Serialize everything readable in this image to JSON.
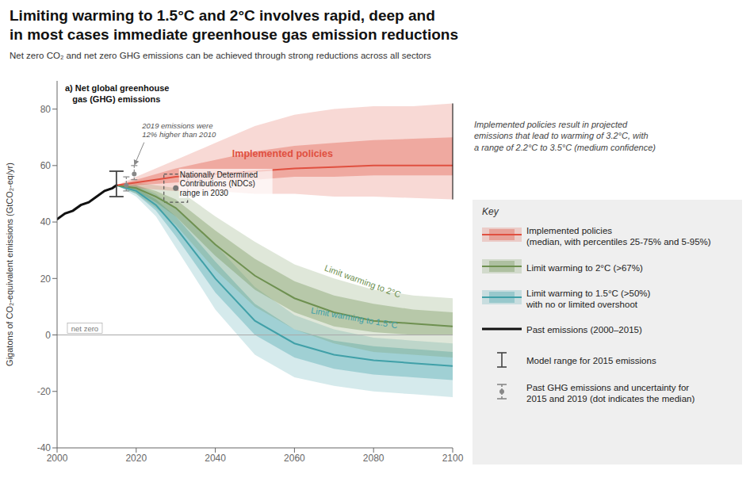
{
  "chart_data": {
    "type": "line",
    "title": "Limiting warming to 1.5°C and 2°C involves rapid, deep and\nin most cases immediate greenhouse gas emission reductions",
    "subtitle": "Net zero CO₂ and net zero GHG emissions can be achieved through strong reductions across all sectors",
    "panel_label": "a) Net global greenhouse\n   gas (GHG) emissions",
    "ylabel": "Gigatons of CO₂-equivalent emissions (GtCO₂-eq/yr)",
    "xlim": [
      2000,
      2100
    ],
    "ylim": [
      -40,
      90
    ],
    "xticks": [
      2000,
      2020,
      2040,
      2060,
      2080,
      2100
    ],
    "yticks": [
      -40,
      -20,
      0,
      20,
      40,
      60,
      80
    ],
    "grid": false,
    "legend": "lower right",
    "legend_title": "Key",
    "series": [
      {
        "name": "Implemented policies\n(median, with percentiles 25-75% and 5-95%)",
        "label": "Implemented policies",
        "type": "band",
        "color": "#e05040",
        "x": [
          2015,
          2020,
          2030,
          2040,
          2050,
          2060,
          2070,
          2080,
          2090,
          2100
        ],
        "values": [
          53,
          54,
          56,
          57,
          58,
          59,
          59.5,
          60,
          60,
          60
        ],
        "p25": [
          53,
          53,
          54,
          55,
          55,
          56,
          56,
          56.5,
          56.5,
          56.5
        ],
        "p75": [
          53,
          55,
          59,
          62,
          65,
          67,
          68,
          69,
          69.5,
          70
        ],
        "p5": [
          53,
          52,
          51,
          51,
          50,
          50,
          49,
          49,
          48.5,
          48
        ],
        "p95": [
          53,
          56,
          62,
          68,
          74,
          78,
          80,
          81,
          81,
          82
        ]
      },
      {
        "name": "Limit warming to 2°C (>67%)",
        "label": "Limit warming to 2°C",
        "type": "band",
        "color": "#6e9050",
        "x": [
          2015,
          2020,
          2025,
          2030,
          2040,
          2050,
          2060,
          2070,
          2080,
          2090,
          2100
        ],
        "values": [
          53,
          52,
          49,
          45,
          32,
          21,
          13,
          8,
          5,
          4,
          3
        ],
        "p25": [
          53,
          51,
          47,
          42,
          28,
          16,
          8,
          3,
          1,
          0,
          0
        ],
        "p75": [
          53,
          53,
          51,
          48,
          37,
          27,
          19,
          14,
          11,
          9,
          8
        ],
        "p5": [
          53,
          50,
          45,
          39,
          23,
          10,
          2,
          -3,
          -6,
          -7,
          -8
        ],
        "p95": [
          53,
          54,
          53,
          52,
          42,
          33,
          25,
          20,
          16,
          14,
          13
        ]
      },
      {
        "name": "Limit warming to 1.5°C (>50%)\nwith no or limited overshoot",
        "label": "Limit warming to 1.5°C",
        "type": "band",
        "color": "#40a0a8",
        "x": [
          2015,
          2020,
          2025,
          2030,
          2040,
          2050,
          2060,
          2070,
          2080,
          2090,
          2100
        ],
        "values": [
          53,
          51,
          46,
          38,
          20,
          5,
          -3,
          -7,
          -9,
          -10,
          -11
        ],
        "p25": [
          53,
          50,
          44,
          35,
          15,
          0,
          -8,
          -12,
          -14,
          -15,
          -16
        ],
        "p75": [
          53,
          52,
          48,
          42,
          26,
          11,
          2,
          -2,
          -4,
          -5,
          -6
        ],
        "p5": [
          53,
          49,
          42,
          31,
          9,
          -7,
          -15,
          -18,
          -20,
          -21,
          -22
        ],
        "p95": [
          53,
          53,
          50,
          45,
          32,
          17,
          7,
          2,
          -1,
          -2,
          -3
        ]
      },
      {
        "name": "Past emissions (2000–2015)",
        "type": "line",
        "color": "#111111",
        "x": [
          2000,
          2002,
          2004,
          2006,
          2008,
          2010,
          2012,
          2014,
          2015
        ],
        "values": [
          41,
          43,
          44,
          46,
          47,
          49,
          51,
          52,
          53
        ]
      }
    ],
    "ndc": {
      "label": "Nationally Determined\nContributions (NDCs)\nrange in 2030",
      "x": 2030,
      "low": 47,
      "high": 57,
      "median": 52
    },
    "model_range": {
      "name": "Model range for 2015 emissions",
      "x": 2015,
      "low": 49,
      "high": 58
    },
    "uncertainty": {
      "name": "Past GHG emissions and uncertainty for\n2015 and 2019 (dot indicates the median)",
      "points": [
        {
          "x": 2017.5,
          "low": 51,
          "high": 56,
          "median": 53
        },
        {
          "x": 2019.5,
          "low": 55,
          "high": 60,
          "median": 57
        }
      ]
    },
    "annotations": {
      "net_zero": {
        "text": "net zero",
        "y": 0
      },
      "arrow_note": "2019 emissions were\n12% higher than 2010",
      "side_note": "Implemented policies result in projected\nemissions that lead to warming of 3.2°C, with\na range of 2.2°C to 3.5°C (medium confidence)"
    }
  }
}
